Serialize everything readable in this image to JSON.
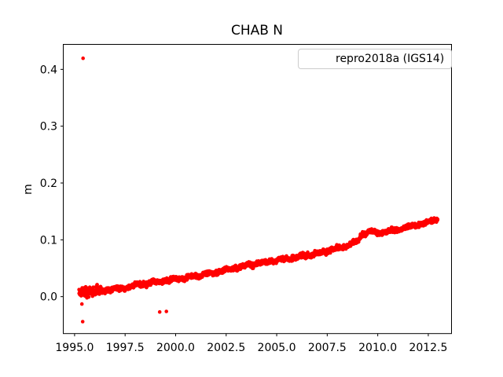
{
  "chart_data": {
    "type": "scatter",
    "title": "CHAB N",
    "xlabel": "",
    "ylabel": "m",
    "xlim": [
      1994.44,
      2013.65
    ],
    "ylim": [
      -0.065,
      0.444
    ],
    "grid": false,
    "x_ticks": [
      {
        "v": 1995.0,
        "label": "1995.0"
      },
      {
        "v": 1997.5,
        "label": "1997.5"
      },
      {
        "v": 2000.0,
        "label": "2000.0"
      },
      {
        "v": 2002.5,
        "label": "2002.5"
      },
      {
        "v": 2005.0,
        "label": "2005.0"
      },
      {
        "v": 2007.5,
        "label": "2007.5"
      },
      {
        "v": 2010.0,
        "label": "2010.0"
      },
      {
        "v": 2012.5,
        "label": "2012.5"
      }
    ],
    "y_ticks": [
      {
        "v": 0.0,
        "label": "0.0"
      },
      {
        "v": 0.1,
        "label": "0.1"
      },
      {
        "v": 0.2,
        "label": "0.2"
      },
      {
        "v": 0.3,
        "label": "0.3"
      },
      {
        "v": 0.4,
        "label": "0.4"
      }
    ],
    "legend": {
      "position": "upper right",
      "entries": [
        {
          "label": "repro2018a (IGS14)",
          "color": "#ff0000",
          "marker": "dot"
        }
      ]
    },
    "series": [
      {
        "name": "repro2018a (IGS14)",
        "color": "#ff0000",
        "sample_start": 1995.22,
        "sample_end": 2012.97,
        "sample_step": 0.007,
        "noise_amplitude": 0.007,
        "early_noise_until": 1996.35,
        "early_noise_scale": 2.0,
        "seed": 42,
        "wiggle": [
          {
            "amp": 0.0012,
            "period": 0.9,
            "phase": 1.3
          },
          {
            "amp": 0.0009,
            "period": 0.37,
            "phase": 0.5
          }
        ],
        "trend": [
          [
            1995.22,
            0.008
          ],
          [
            1995.8,
            0.009
          ],
          [
            1996.3,
            0.01
          ],
          [
            1996.8,
            0.013
          ],
          [
            1997.3,
            0.014
          ],
          [
            1997.8,
            0.018
          ],
          [
            1998.3,
            0.022
          ],
          [
            1998.8,
            0.025
          ],
          [
            1999.3,
            0.027
          ],
          [
            1999.8,
            0.03
          ],
          [
            2000.3,
            0.032
          ],
          [
            2000.8,
            0.035
          ],
          [
            2001.3,
            0.038
          ],
          [
            2001.8,
            0.041
          ],
          [
            2002.3,
            0.045
          ],
          [
            2002.8,
            0.049
          ],
          [
            2003.3,
            0.053
          ],
          [
            2003.8,
            0.057
          ],
          [
            2004.3,
            0.059
          ],
          [
            2004.8,
            0.063
          ],
          [
            2005.3,
            0.066
          ],
          [
            2005.8,
            0.068
          ],
          [
            2006.3,
            0.072
          ],
          [
            2006.8,
            0.075
          ],
          [
            2007.3,
            0.079
          ],
          [
            2007.8,
            0.083
          ],
          [
            2008.3,
            0.088
          ],
          [
            2008.8,
            0.094
          ],
          [
            2009.05,
            0.099
          ],
          [
            2009.25,
            0.11
          ],
          [
            2009.6,
            0.115
          ],
          [
            2010.0,
            0.112
          ],
          [
            2010.4,
            0.114
          ],
          [
            2010.9,
            0.117
          ],
          [
            2011.4,
            0.121
          ],
          [
            2011.9,
            0.126
          ],
          [
            2012.4,
            0.13
          ],
          [
            2012.97,
            0.136
          ]
        ],
        "outliers": [
          [
            1995.42,
            0.4195
          ],
          [
            1995.36,
            -0.013
          ],
          [
            1995.4,
            -0.044
          ],
          [
            1999.21,
            -0.027
          ],
          [
            1999.54,
            -0.026
          ]
        ]
      }
    ]
  }
}
